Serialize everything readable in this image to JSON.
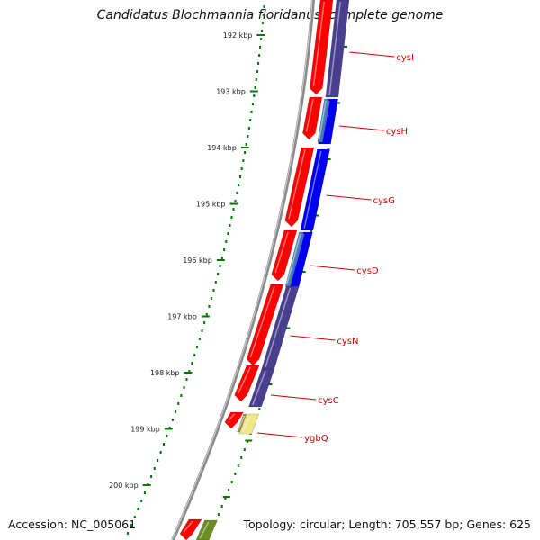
{
  "title": "Candidatus Blochmannia floridanus, complete genome",
  "footer": {
    "accession_label": "Accession:",
    "accession": "NC_005061",
    "summary": "Topology: circular; Length: 705,557 bp; Genes: 625"
  },
  "ruler": {
    "unit": "kbp",
    "ticks": [
      "192 kbp",
      "193 kbp",
      "194 kbp",
      "195 kbp",
      "196 kbp",
      "197 kbp",
      "198 kbp",
      "199 kbp",
      "200 kbp"
    ]
  },
  "genes": [
    "cysI",
    "cysH",
    "cysG",
    "cysD",
    "cysN",
    "cysC",
    "ygbQ"
  ],
  "colors": {
    "backbone": "#8a8a8a",
    "orf_forward": "#ff0000",
    "gene_strand": "#4a3f8f",
    "gene_blue": "#0000ee",
    "gene_steel": "#4682b4",
    "gene_yellow": "#f0e68c",
    "gene_green": "#6b8e23",
    "ruler": "#007700",
    "label": "#cc0000"
  }
}
